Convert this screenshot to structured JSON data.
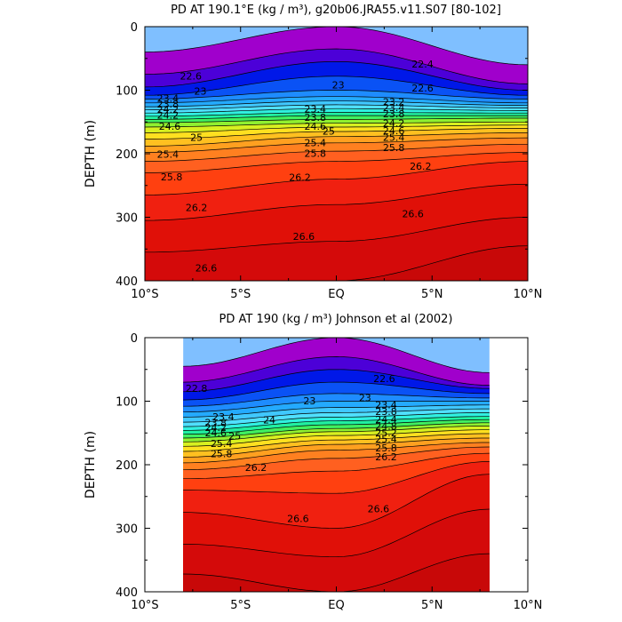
{
  "chart_data": [
    {
      "type": "contour",
      "title": "PD AT 190.1°E (kg / m³), g20b06.JRA55.v11.S07 [80-102]",
      "ylabel": "DEPTH (m)",
      "xlabel": "",
      "xlim": [
        -10,
        10
      ],
      "ylim": [
        0,
        400
      ],
      "y_inverted": true,
      "x_ticks": [
        -10,
        -5,
        0,
        5,
        10
      ],
      "x_tick_labels": [
        "10°S",
        "5°S",
        "EQ",
        "5°N",
        "10°N"
      ],
      "y_ticks": [
        0,
        100,
        200,
        300,
        400
      ],
      "y_tick_labels": [
        "0",
        "100",
        "200",
        "300",
        "400"
      ],
      "data_x_range": [
        -10,
        10
      ],
      "levels": [
        {
          "v": 22.4,
          "left": 40,
          "mid": 0,
          "right": 60
        },
        {
          "v": 22.6,
          "left": 75,
          "mid": 35,
          "right": 90
        },
        {
          "v": 22.8,
          "left": 95,
          "mid": 55,
          "right": 100
        },
        {
          "v": 23.0,
          "left": 108,
          "mid": 78,
          "right": 108
        },
        {
          "v": 23.2,
          "left": 114,
          "mid": 100,
          "right": 114
        },
        {
          "v": 23.4,
          "left": 120,
          "mid": 110,
          "right": 120
        },
        {
          "v": 23.6,
          "left": 126,
          "mid": 117,
          "right": 124
        },
        {
          "v": 23.8,
          "left": 131,
          "mid": 123,
          "right": 128
        },
        {
          "v": 24.0,
          "left": 136,
          "mid": 129,
          "right": 132
        },
        {
          "v": 24.2,
          "left": 141,
          "mid": 135,
          "right": 136
        },
        {
          "v": 24.4,
          "left": 146,
          "mid": 140,
          "right": 140
        },
        {
          "v": 24.6,
          "left": 151,
          "mid": 146,
          "right": 144
        },
        {
          "v": 24.8,
          "left": 158,
          "mid": 152,
          "right": 150
        },
        {
          "v": 25.0,
          "left": 167,
          "mid": 158,
          "right": 155
        },
        {
          "v": 25.2,
          "left": 177,
          "mid": 165,
          "right": 160
        },
        {
          "v": 25.4,
          "left": 188,
          "mid": 173,
          "right": 167
        },
        {
          "v": 25.6,
          "left": 198,
          "mid": 183,
          "right": 175
        },
        {
          "v": 25.8,
          "left": 212,
          "mid": 196,
          "right": 185
        },
        {
          "v": 26.0,
          "left": 230,
          "mid": 212,
          "right": 198
        },
        {
          "v": 26.2,
          "left": 265,
          "mid": 240,
          "right": 212
        },
        {
          "v": 26.4,
          "left": 305,
          "mid": 280,
          "right": 248
        },
        {
          "v": 26.6,
          "left": 355,
          "mid": 338,
          "right": 300
        },
        {
          "v": 26.8,
          "left": 400,
          "mid": 400,
          "right": 345
        }
      ],
      "contour_labels": [
        {
          "x": -7.6,
          "y": 83,
          "text": "22.6"
        },
        {
          "x": -7.1,
          "y": 107,
          "text": "23"
        },
        {
          "x": -8.8,
          "y": 118,
          "text": "23.4"
        },
        {
          "x": -8.8,
          "y": 127,
          "text": "23.8"
        },
        {
          "x": -8.8,
          "y": 136,
          "text": "24.2"
        },
        {
          "x": -8.8,
          "y": 145,
          "text": "24.2"
        },
        {
          "x": -8.7,
          "y": 162,
          "text": "24.6"
        },
        {
          "x": -7.3,
          "y": 180,
          "text": "25"
        },
        {
          "x": -8.8,
          "y": 206,
          "text": "25.4"
        },
        {
          "x": -8.6,
          "y": 242,
          "text": "25.8"
        },
        {
          "x": -7.3,
          "y": 290,
          "text": "26.2"
        },
        {
          "x": -6.8,
          "y": 385,
          "text": "26.6"
        },
        {
          "x": -1.1,
          "y": 135,
          "text": "23.4"
        },
        {
          "x": -1.1,
          "y": 148,
          "text": "23.8"
        },
        {
          "x": -1.1,
          "y": 162,
          "text": "24.6"
        },
        {
          "x": -1.1,
          "y": 188,
          "text": "25.4"
        },
        {
          "x": -1.1,
          "y": 205,
          "text": "25.8"
        },
        {
          "x": -1.9,
          "y": 243,
          "text": "26.2"
        },
        {
          "x": -1.7,
          "y": 336,
          "text": "26.6"
        },
        {
          "x": 0.1,
          "y": 97,
          "text": "23"
        },
        {
          "x": -0.4,
          "y": 170,
          "text": "25"
        },
        {
          "x": 4.5,
          "y": 64,
          "text": "22.4"
        },
        {
          "x": 4.5,
          "y": 102,
          "text": "22.6"
        },
        {
          "x": 3.0,
          "y": 124,
          "text": "23.2"
        },
        {
          "x": 3.0,
          "y": 133,
          "text": "23.4"
        },
        {
          "x": 3.0,
          "y": 143,
          "text": "23.8"
        },
        {
          "x": 3.0,
          "y": 157,
          "text": "24.2"
        },
        {
          "x": 3.0,
          "y": 169,
          "text": "24.6"
        },
        {
          "x": 3.0,
          "y": 180,
          "text": "25.4"
        },
        {
          "x": 3.0,
          "y": 196,
          "text": "25.8"
        },
        {
          "x": 4.4,
          "y": 225,
          "text": "26.2"
        },
        {
          "x": 4.0,
          "y": 300,
          "text": "26.6"
        }
      ]
    },
    {
      "type": "contour",
      "title": "PD AT 190 (kg / m³) Johnson et al (2002)",
      "ylabel": "DEPTH (m)",
      "xlabel": "",
      "xlim": [
        -10,
        10
      ],
      "ylim": [
        0,
        400
      ],
      "y_inverted": true,
      "x_ticks": [
        -10,
        -5,
        0,
        5,
        10
      ],
      "x_tick_labels": [
        "10°S",
        "5°S",
        "EQ",
        "5°N",
        "10°N"
      ],
      "y_ticks": [
        0,
        100,
        200,
        300,
        400
      ],
      "y_tick_labels": [
        "0",
        "100",
        "200",
        "300",
        "400"
      ],
      "data_x_range": [
        -8,
        8
      ],
      "levels": [
        {
          "v": 22.4,
          "left": 45,
          "mid": 0,
          "right": 55
        },
        {
          "v": 22.6,
          "left": 70,
          "mid": 30,
          "right": 75
        },
        {
          "v": 22.8,
          "left": 85,
          "mid": 50,
          "right": 80
        },
        {
          "v": 23.0,
          "left": 98,
          "mid": 70,
          "right": 88
        },
        {
          "v": 23.2,
          "left": 108,
          "mid": 88,
          "right": 95
        },
        {
          "v": 23.4,
          "left": 117,
          "mid": 100,
          "right": 100
        },
        {
          "v": 23.6,
          "left": 125,
          "mid": 110,
          "right": 106
        },
        {
          "v": 23.8,
          "left": 133,
          "mid": 118,
          "right": 112
        },
        {
          "v": 24.0,
          "left": 140,
          "mid": 125,
          "right": 118
        },
        {
          "v": 24.2,
          "left": 146,
          "mid": 131,
          "right": 124
        },
        {
          "v": 24.4,
          "left": 152,
          "mid": 137,
          "right": 129
        },
        {
          "v": 24.6,
          "left": 158,
          "mid": 143,
          "right": 134
        },
        {
          "v": 24.8,
          "left": 164,
          "mid": 148,
          "right": 139
        },
        {
          "v": 25.0,
          "left": 171,
          "mid": 154,
          "right": 145
        },
        {
          "v": 25.2,
          "left": 179,
          "mid": 161,
          "right": 151
        },
        {
          "v": 25.4,
          "left": 188,
          "mid": 168,
          "right": 158
        },
        {
          "v": 25.6,
          "left": 197,
          "mid": 177,
          "right": 165
        },
        {
          "v": 25.8,
          "left": 208,
          "mid": 190,
          "right": 172
        },
        {
          "v": 26.0,
          "left": 222,
          "mid": 210,
          "right": 182
        },
        {
          "v": 26.2,
          "left": 240,
          "mid": 245,
          "right": 195
        },
        {
          "v": 26.4,
          "left": 275,
          "mid": 300,
          "right": 215
        },
        {
          "v": 26.6,
          "left": 325,
          "mid": 345,
          "right": 270
        },
        {
          "v": 26.8,
          "left": 372,
          "mid": 400,
          "right": 340
        }
      ],
      "contour_labels": [
        {
          "x": -7.3,
          "y": 85,
          "text": "22.8"
        },
        {
          "x": -5.9,
          "y": 130,
          "text": "23.4"
        },
        {
          "x": -6.3,
          "y": 139,
          "text": "23.8"
        },
        {
          "x": -6.3,
          "y": 147,
          "text": "24.2"
        },
        {
          "x": -6.3,
          "y": 155,
          "text": "24.6"
        },
        {
          "x": -5.3,
          "y": 160,
          "text": "25"
        },
        {
          "x": -6.0,
          "y": 172,
          "text": "25.4"
        },
        {
          "x": -6.0,
          "y": 188,
          "text": "25.8"
        },
        {
          "x": -4.2,
          "y": 210,
          "text": "26.2"
        },
        {
          "x": -2.0,
          "y": 290,
          "text": "26.6"
        },
        {
          "x": -3.5,
          "y": 135,
          "text": "24"
        },
        {
          "x": -1.4,
          "y": 105,
          "text": "23"
        },
        {
          "x": 2.5,
          "y": 70,
          "text": "22.6"
        },
        {
          "x": 1.5,
          "y": 100,
          "text": "23"
        },
        {
          "x": 2.6,
          "y": 111,
          "text": "23.4"
        },
        {
          "x": 2.6,
          "y": 122,
          "text": "23.8"
        },
        {
          "x": 2.6,
          "y": 134,
          "text": "24.4"
        },
        {
          "x": 2.6,
          "y": 145,
          "text": "24.8"
        },
        {
          "x": 2.6,
          "y": 155,
          "text": "25.2"
        },
        {
          "x": 2.6,
          "y": 165,
          "text": "25.4"
        },
        {
          "x": 2.6,
          "y": 179,
          "text": "25.8"
        },
        {
          "x": 2.6,
          "y": 193,
          "text": "26.2"
        },
        {
          "x": 2.2,
          "y": 275,
          "text": "26.6"
        }
      ]
    }
  ]
}
